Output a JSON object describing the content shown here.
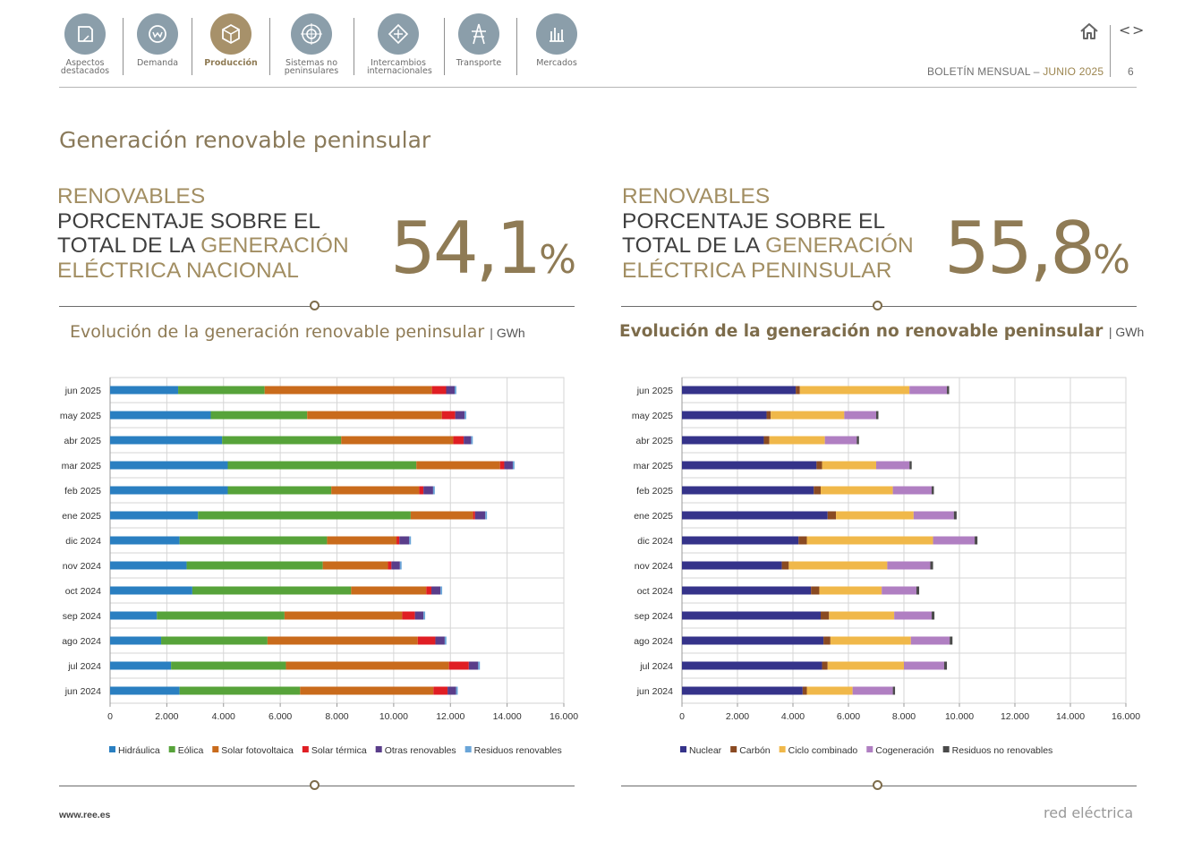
{
  "nav": {
    "items": [
      {
        "label_1": "Aspectos",
        "label_2": "destacados",
        "icon": "document-icon"
      },
      {
        "label_1": "Demanda",
        "label_2": "",
        "icon": "demand-meter-icon"
      },
      {
        "label_1": "Producción",
        "label_2": "",
        "icon": "production-cube-icon"
      },
      {
        "label_1": "Sistemas no",
        "label_2": "peninsulares",
        "icon": "target-icon"
      },
      {
        "label_1": "Intercambios",
        "label_2": "internacionales",
        "icon": "exchange-icon"
      },
      {
        "label_1": "Transporte",
        "label_2": "",
        "icon": "pylon-icon"
      },
      {
        "label_1": "Mercados",
        "label_2": "",
        "icon": "bars-icon"
      }
    ],
    "active_index": 2
  },
  "header": {
    "bulletin": "BOLETÍN MENSUAL",
    "sep": "–",
    "month": "JUNIO 2025",
    "page": "6",
    "prev": "<",
    "next": ">"
  },
  "page_title": "Generación renovable peninsular",
  "kpis": [
    {
      "l1": "RENOVABLES",
      "l2": "PORCENTAJE SOBRE EL",
      "l3a": "TOTAL DE LA ",
      "l3b": "GENERACIÓN",
      "l4": "ELÉCTRICA NACIONAL",
      "value": "54,1",
      "unit": "%"
    },
    {
      "l1": "RENOVABLES",
      "l2": "PORCENTAJE SOBRE EL",
      "l3a": "TOTAL DE LA ",
      "l3b": "GENERACIÓN",
      "l4": "ELÉCTRICA PENINSULAR",
      "value": "55,8",
      "unit": "%"
    }
  ],
  "chart_data": [
    {
      "type": "bar",
      "orientation": "horizontal",
      "stacked": true,
      "title": "Evolución de la generación renovable peninsular",
      "unit": "GWh",
      "categories": [
        "jun 2025",
        "may 2025",
        "abr 2025",
        "mar 2025",
        "feb 2025",
        "ene 2025",
        "dic 2024",
        "nov 2024",
        "oct 2024",
        "sep 2024",
        "ago 2024",
        "jul 2024",
        "jun 2024"
      ],
      "xlim": [
        0,
        16000
      ],
      "xticks": [
        0,
        2000,
        4000,
        6000,
        8000,
        10000,
        12000,
        14000,
        16000
      ],
      "xtick_labels": [
        "0",
        "2.000",
        "4.000",
        "6.000",
        "8.000",
        "10.000",
        "12.000",
        "14.000",
        "16.000"
      ],
      "grid": true,
      "legend_position": "bottom",
      "series": [
        {
          "name": "Hidráulica",
          "color": "#2a7fc1",
          "values": [
            2400,
            3550,
            3950,
            4150,
            4150,
            3100,
            2450,
            2700,
            2900,
            1650,
            1800,
            2150,
            2450
          ]
        },
        {
          "name": "Eólica",
          "color": "#57a33a",
          "values": [
            3050,
            3400,
            4200,
            6650,
            3650,
            7500,
            5200,
            4800,
            5600,
            4500,
            3750,
            4050,
            4250
          ]
        },
        {
          "name": "Solar fotovoltaica",
          "color": "#c96b1c",
          "values": [
            5900,
            4750,
            3950,
            2950,
            3100,
            2200,
            2450,
            2300,
            2650,
            4150,
            5300,
            5750,
            4700
          ]
        },
        {
          "name": "Solar térmica",
          "color": "#e01e24",
          "values": [
            500,
            470,
            370,
            150,
            150,
            70,
            100,
            120,
            180,
            450,
            620,
            700,
            500
          ]
        },
        {
          "name": "Otras renovables",
          "color": "#5a3d8a",
          "values": [
            300,
            330,
            260,
            300,
            340,
            360,
            350,
            300,
            320,
            300,
            330,
            330,
            300
          ]
        },
        {
          "name": "Residuos renovables",
          "color": "#6aa5d8",
          "values": [
            60,
            60,
            60,
            60,
            60,
            60,
            60,
            60,
            60,
            60,
            60,
            60,
            60
          ]
        }
      ]
    },
    {
      "type": "bar",
      "orientation": "horizontal",
      "stacked": true,
      "title": "Evolución de la generación no renovable peninsular",
      "unit": "GWh",
      "categories": [
        "jun 2025",
        "may 2025",
        "abr 2025",
        "mar 2025",
        "feb 2025",
        "ene 2025",
        "dic 2024",
        "nov 2024",
        "oct 2024",
        "sep 2024",
        "ago 2024",
        "jul 2024",
        "jun 2024"
      ],
      "xlim": [
        0,
        16000
      ],
      "xticks": [
        0,
        2000,
        4000,
        6000,
        8000,
        10000,
        12000,
        14000,
        16000
      ],
      "xtick_labels": [
        "0",
        "2.000",
        "4.000",
        "6.000",
        "8.000",
        "10.000",
        "12.000",
        "14.000",
        "16.000"
      ],
      "grid": true,
      "legend_position": "bottom",
      "series": [
        {
          "name": "Nuclear",
          "color": "#35338a",
          "values": [
            4100,
            3050,
            2950,
            4850,
            4750,
            5250,
            4200,
            3600,
            4650,
            5000,
            5100,
            5050,
            4350
          ]
        },
        {
          "name": "Carbón",
          "color": "#8a4a22",
          "values": [
            150,
            150,
            200,
            200,
            250,
            300,
            300,
            250,
            300,
            300,
            250,
            200,
            150
          ]
        },
        {
          "name": "Ciclo combinado",
          "color": "#f0b84a",
          "values": [
            3950,
            2650,
            2000,
            1950,
            2600,
            2800,
            4550,
            3550,
            2250,
            2350,
            2900,
            2750,
            1650
          ]
        },
        {
          "name": "Cogeneración",
          "color": "#b07fc2",
          "values": [
            1350,
            1150,
            1150,
            1200,
            1400,
            1450,
            1500,
            1550,
            1250,
            1350,
            1400,
            1450,
            1450
          ]
        },
        {
          "name": "Residuos no renovables",
          "color": "#4a4a4a",
          "values": [
            80,
            80,
            80,
            80,
            80,
            100,
            100,
            100,
            100,
            100,
            100,
            100,
            80
          ]
        }
      ]
    }
  ],
  "footer": {
    "url": "www.ree.es",
    "brand": "red eléctrica"
  }
}
